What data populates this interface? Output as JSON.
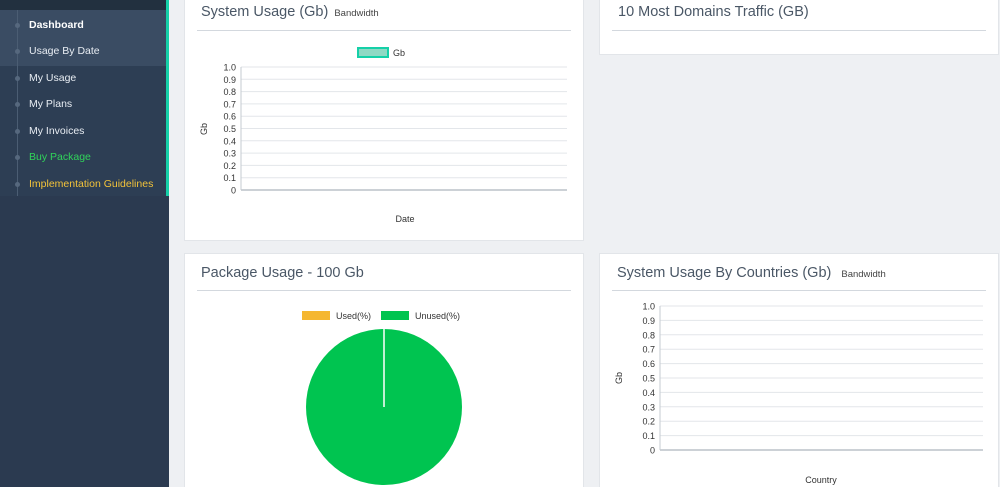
{
  "sidebar": {
    "items": [
      {
        "label": "Dashboard",
        "style": "bold"
      },
      {
        "label": "Usage By Date",
        "style": "normal"
      },
      {
        "label": "My Usage",
        "style": "normal"
      },
      {
        "label": "My Plans",
        "style": "normal"
      },
      {
        "label": "My Invoices",
        "style": "normal"
      },
      {
        "label": "Buy Package",
        "style": "green"
      },
      {
        "label": "Implementation Guidelines",
        "style": "yellow"
      }
    ]
  },
  "cards": {
    "system_usage": {
      "title": "System Usage (Gb)",
      "subtitle": "Bandwidth"
    },
    "domains": {
      "title": "10 Most Domains Traffic (GB)"
    },
    "package": {
      "title": "Package Usage - 100 Gb"
    },
    "countries": {
      "title": "System Usage By Countries (Gb)",
      "subtitle": "Bandwidth"
    }
  },
  "colors": {
    "accent": "#15d0a8",
    "used": "#f5b731",
    "unused": "#00c450",
    "gb_legend": "#8fd9c4"
  },
  "chart_data": [
    {
      "type": "line",
      "legend": [
        "Gb"
      ],
      "series": [
        {
          "name": "Gb",
          "values": []
        }
      ],
      "xlabel": "Date",
      "ylabel": "Gb",
      "ylim": [
        0,
        1.0
      ],
      "yticks": [
        "1.0",
        "0.9",
        "0.8",
        "0.7",
        "0.6",
        "0.5",
        "0.4",
        "0.3",
        "0.2",
        "0.1",
        "0"
      ],
      "grid": true
    },
    {
      "type": "pie",
      "legend": [
        "Used(%)",
        "Unused(%)"
      ],
      "series": [
        {
          "name": "Used(%)",
          "value": 0
        },
        {
          "name": "Unused(%)",
          "value": 100
        }
      ]
    },
    {
      "type": "bar",
      "xlabel": "Country",
      "ylabel": "Gb",
      "ylim": [
        0,
        1.0
      ],
      "yticks": [
        "1.0",
        "0.9",
        "0.8",
        "0.7",
        "0.6",
        "0.5",
        "0.4",
        "0.3",
        "0.2",
        "0.1",
        "0"
      ],
      "grid": true,
      "categories": [],
      "values": []
    }
  ]
}
